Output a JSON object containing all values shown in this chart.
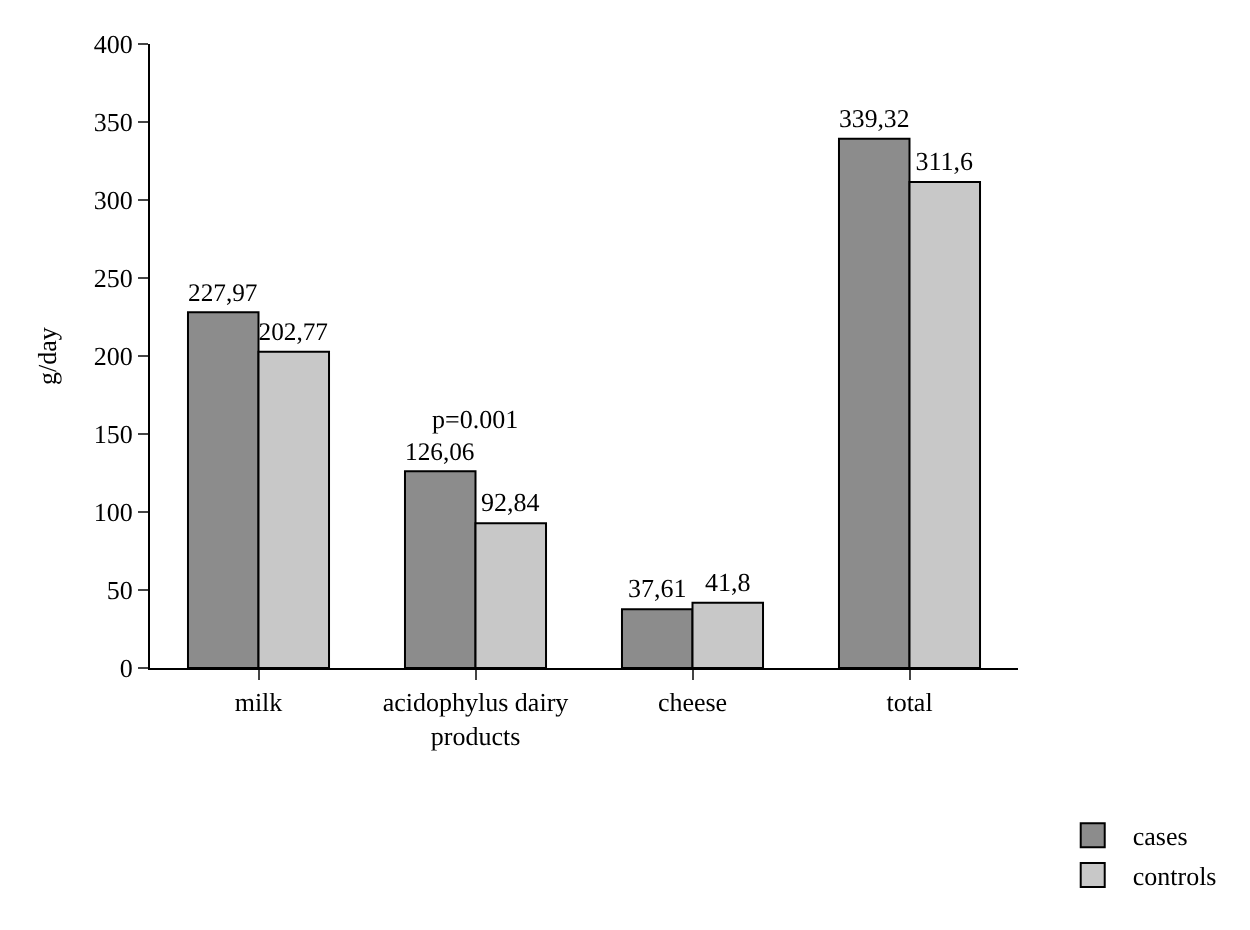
{
  "chart_data": {
    "type": "bar",
    "ylabel": "g/day",
    "categories": [
      "milk",
      "acidophylus dairy products",
      "cheese",
      "total"
    ],
    "series": [
      {
        "name": "cases",
        "color": "#8c8c8c",
        "values": [
          227.97,
          126.06,
          37.61,
          339.32
        ],
        "value_labels": [
          "227,97",
          "126,06",
          "37,61",
          "339,32"
        ]
      },
      {
        "name": "controls",
        "color": "#c8c8c8",
        "values": [
          202.77,
          92.84,
          41.8,
          311.6
        ],
        "value_labels": [
          "202,77",
          "92,84",
          "41,8",
          "311,6"
        ]
      }
    ],
    "annotations": [
      "p=0.001"
    ],
    "ylim": [
      0,
      400
    ],
    "yticks": [
      0,
      50,
      100,
      150,
      200,
      250,
      300,
      350,
      400
    ],
    "grid": false,
    "legend": "bottom right"
  }
}
